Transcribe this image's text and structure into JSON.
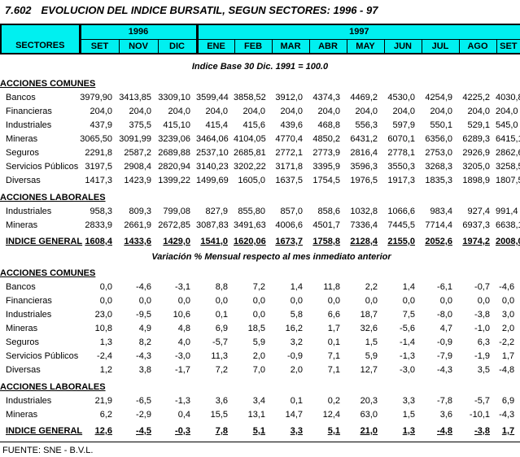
{
  "title": {
    "number": "7.602",
    "text": "EVOLUCION DEL INDICE BURSATIL, SEGUN SECTORES: 1996 - 97"
  },
  "colors": {
    "header_bg": "#00F0F0",
    "border": "#000000",
    "text": "#000000",
    "background": "#FFFFFF"
  },
  "table_header": {
    "sectors_label": "SECTORES",
    "groups": [
      {
        "year": "1996",
        "months": [
          "SET",
          "NOV",
          "DIC"
        ]
      },
      {
        "year": "1997",
        "months": [
          "ENE",
          "FEB",
          "MAR",
          "ABR",
          "MAY",
          "JUN",
          "JUL",
          "AGO",
          "SET"
        ]
      }
    ]
  },
  "index_block": {
    "subtitle": "Indice Base 30 Dic. 1991 = 100.0",
    "sections": [
      {
        "label": "ACCIONES COMUNES",
        "rows": [
          {
            "label": "Bancos",
            "values": [
              "3979,90",
              "3413,85",
              "3309,10",
              "3599,44",
              "3858,52",
              "3912,0",
              "4374,3",
              "4469,2",
              "4530,0",
              "4254,9",
              "4225,2",
              "4030,8"
            ]
          },
          {
            "label": "Financieras",
            "values": [
              "204,0",
              "204,0",
              "204,0",
              "204,0",
              "204,0",
              "204,0",
              "204,0",
              "204,0",
              "204,0",
              "204,0",
              "204,0",
              "204,0"
            ]
          },
          {
            "label": "Industriales",
            "values": [
              "437,9",
              "375,5",
              "415,10",
              "415,4",
              "415,6",
              "439,6",
              "468,8",
              "556,3",
              "597,9",
              "550,1",
              "529,1",
              "545,0"
            ]
          },
          {
            "label": "Mineras",
            "values": [
              "3065,50",
              "3091,99",
              "3239,06",
              "3464,06",
              "4104,05",
              "4770,4",
              "4850,2",
              "6431,2",
              "6070,1",
              "6356,0",
              "6289,3",
              "6415,1"
            ]
          },
          {
            "label": "Seguros",
            "values": [
              "2291,8",
              "2587,2",
              "2689,88",
              "2537,10",
              "2685,81",
              "2772,1",
              "2773,9",
              "2816,4",
              "2778,1",
              "2753,0",
              "2926,9",
              "2862,6"
            ]
          },
          {
            "label": "Servicios Públicos",
            "values": [
              "3197,5",
              "2908,4",
              "2820,94",
              "3140,23",
              "3202,22",
              "3171,8",
              "3395,9",
              "3596,3",
              "3550,3",
              "3268,3",
              "3205,0",
              "3258,5"
            ]
          },
          {
            "label": "Diversas",
            "values": [
              "1417,3",
              "1423,9",
              "1399,22",
              "1499,69",
              "1605,0",
              "1637,5",
              "1754,5",
              "1976,5",
              "1917,3",
              "1835,3",
              "1898,9",
              "1807,5"
            ]
          }
        ]
      },
      {
        "label": "ACCIONES LABORALES",
        "rows": [
          {
            "label": "Industriales",
            "values": [
              "958,3",
              "809,3",
              "799,08",
              "827,9",
              "855,80",
              "857,0",
              "858,6",
              "1032,8",
              "1066,6",
              "983,4",
              "927,4",
              "991,4"
            ]
          },
          {
            "label": "Mineras",
            "values": [
              "2833,9",
              "2661,9",
              "2672,85",
              "3087,83",
              "3491,63",
              "4006,6",
              "4501,7",
              "7336,4",
              "7445,5",
              "7714,4",
              "6937,3",
              "6638,1"
            ]
          }
        ]
      }
    ],
    "total": {
      "label": "INDICE GENERAL",
      "values": [
        "1608,4",
        "1433,6",
        "1429,0",
        "1541,0",
        "1620,06",
        "1673,7",
        "1758,8",
        "2128,4",
        "2155,0",
        "2052,6",
        "1974,2",
        "2008,0"
      ]
    }
  },
  "variation_block": {
    "subtitle": "Variación % Mensual respecto al mes inmediato anterior",
    "sections": [
      {
        "label": "ACCIONES COMUNES",
        "rows": [
          {
            "label": "Bancos",
            "values": [
              "0,0",
              "-4,6",
              "-3,1",
              "8,8",
              "7,2",
              "1,4",
              "11,8",
              "2,2",
              "1,4",
              "-6,1",
              "-0,7",
              "-4,6"
            ]
          },
          {
            "label": "Financieras",
            "values": [
              "0,0",
              "0,0",
              "0,0",
              "0,0",
              "0,0",
              "0,0",
              "0,0",
              "0,0",
              "0,0",
              "0,0",
              "0,0",
              "0,0"
            ]
          },
          {
            "label": "Industriales",
            "values": [
              "23,0",
              "-9,5",
              "10,6",
              "0,1",
              "0,0",
              "5,8",
              "6,6",
              "18,7",
              "7,5",
              "-8,0",
              "-3,8",
              "3,0"
            ]
          },
          {
            "label": "Mineras",
            "values": [
              "10,8",
              "4,9",
              "4,8",
              "6,9",
              "18,5",
              "16,2",
              "1,7",
              "32,6",
              "-5,6",
              "4,7",
              "-1,0",
              "2,0"
            ]
          },
          {
            "label": "Seguros",
            "values": [
              "1,3",
              "8,2",
              "4,0",
              "-5,7",
              "5,9",
              "3,2",
              "0,1",
              "1,5",
              "-1,4",
              "-0,9",
              "6,3",
              "-2,2"
            ]
          },
          {
            "label": "Servicios Públicos",
            "values": [
              "-2,4",
              "-4,3",
              "-3,0",
              "11,3",
              "2,0",
              "-0,9",
              "7,1",
              "5,9",
              "-1,3",
              "-7,9",
              "-1,9",
              "1,7"
            ]
          },
          {
            "label": "Diversas",
            "values": [
              "1,2",
              "3,8",
              "-1,7",
              "7,2",
              "7,0",
              "2,0",
              "7,1",
              "12,7",
              "-3,0",
              "-4,3",
              "3,5",
              "-4,8"
            ]
          }
        ]
      },
      {
        "label": "ACCIONES LABORALES",
        "rows": [
          {
            "label": "Industriales",
            "values": [
              "21,9",
              "-6,5",
              "-1,3",
              "3,6",
              "3,4",
              "0,1",
              "0,2",
              "20,3",
              "3,3",
              "-7,8",
              "-5,7",
              "6,9"
            ]
          },
          {
            "label": "Mineras",
            "values": [
              "6,2",
              "-2,9",
              "0,4",
              "15,5",
              "13,1",
              "14,7",
              "12,4",
              "63,0",
              "1,5",
              "3,6",
              "-10,1",
              "-4,3"
            ]
          }
        ]
      }
    ],
    "total": {
      "label": "INDICE GENERAL",
      "values": [
        "12,6",
        "-4,5",
        "-0,3",
        "7,8",
        "5,1",
        "3,3",
        "5,1",
        "21,0",
        "1,3",
        "-4,8",
        "-3,8",
        "1,7"
      ]
    }
  },
  "footer": {
    "source": "FUENTE: SNE - B.V.L."
  }
}
